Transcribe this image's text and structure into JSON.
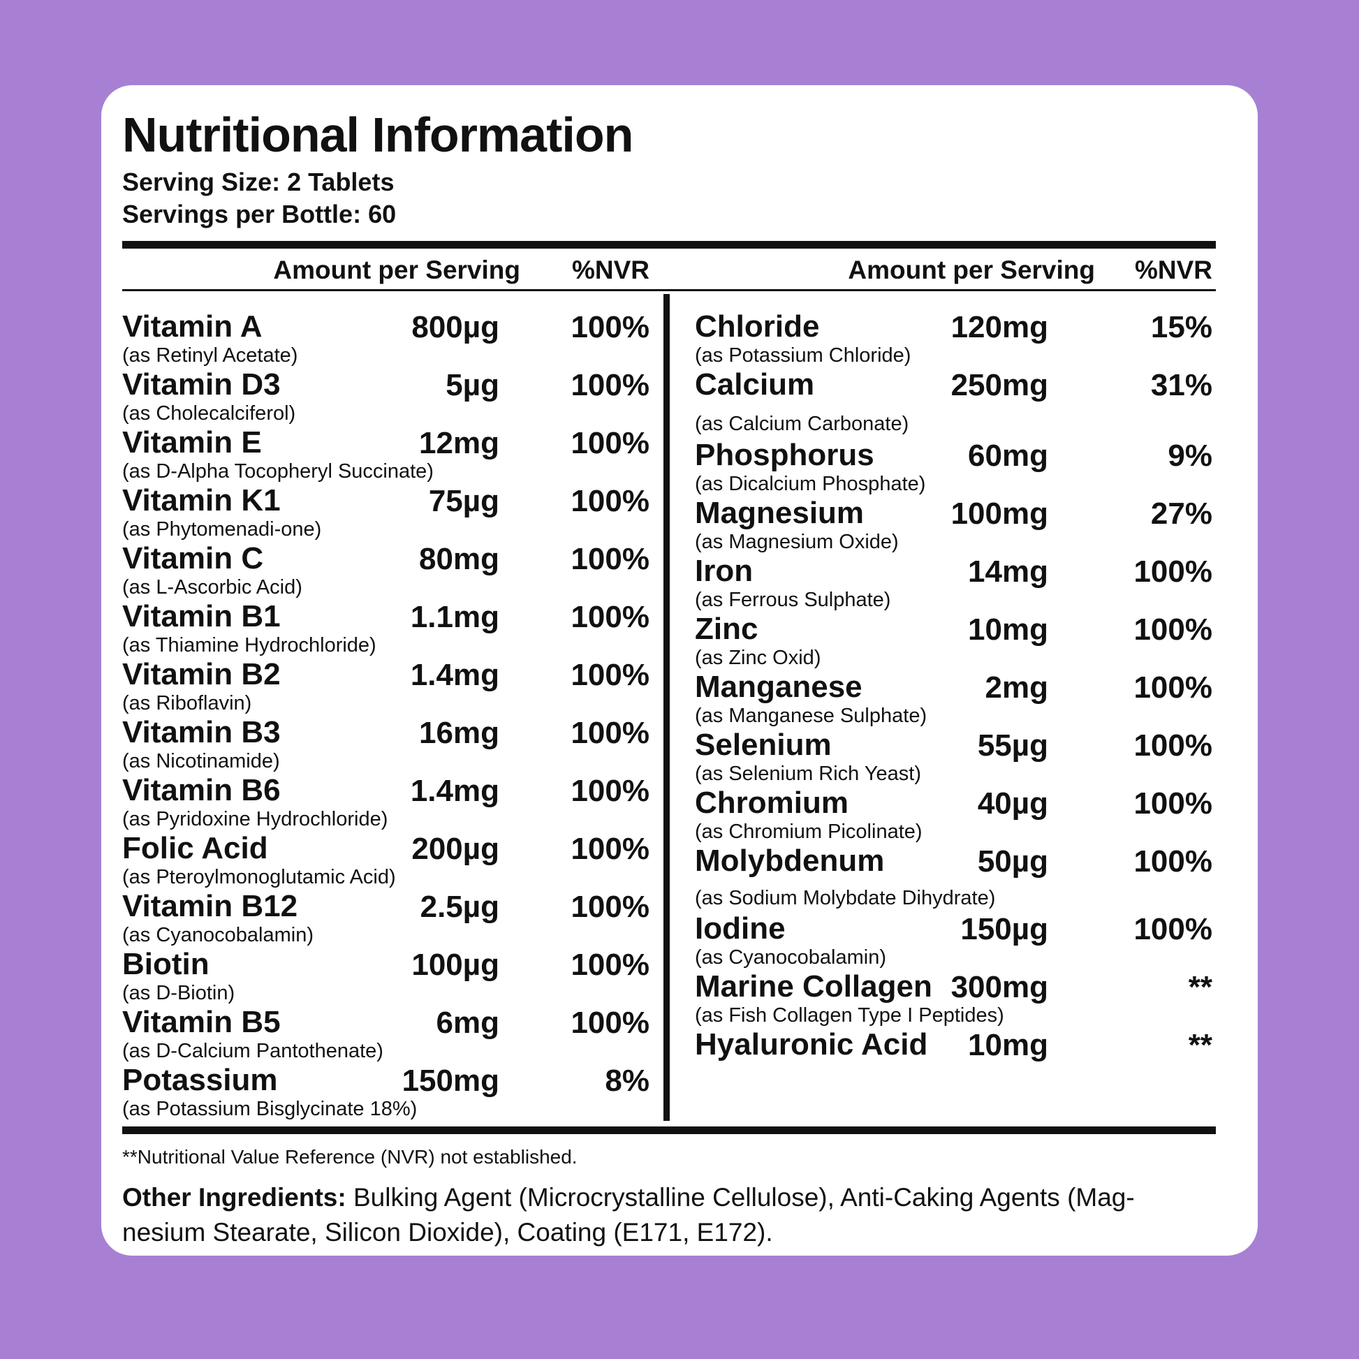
{
  "title": "Nutritional Information",
  "serving_size": "Serving Size: 2 Tablets",
  "servings_per_bottle": "Servings per Bottle: 60",
  "table": {
    "header": {
      "amount": "Amount per Serving",
      "nvr": "%NVR"
    },
    "left_column": [
      {
        "name": "Vitamin A",
        "sub": "(as Retinyl Acetate)",
        "amount": "800µg",
        "nvr": "100%"
      },
      {
        "name": "Vitamin D3",
        "sub": "(as Cholecalciferol)",
        "amount": "5µg",
        "nvr": "100%"
      },
      {
        "name": "Vitamin E",
        "sub": "(as D-Alpha Tocopheryl Succinate)",
        "amount": "12mg",
        "nvr": "100%"
      },
      {
        "name": "Vitamin K1",
        "sub": "(as Phytomenadi-one)",
        "amount": "75µg",
        "nvr": "100%"
      },
      {
        "name": "Vitamin C",
        "sub": "(as L-Ascorbic Acid)",
        "amount": "80mg",
        "nvr": "100%"
      },
      {
        "name": "Vitamin B1",
        "sub": "(as Thiamine Hydrochloride)",
        "amount": "1.1mg",
        "nvr": "100%"
      },
      {
        "name": "Vitamin B2",
        "sub": "(as Riboflavin)",
        "amount": "1.4mg",
        "nvr": "100%"
      },
      {
        "name": "Vitamin B3",
        "sub": "(as Nicotinamide)",
        "amount": "16mg",
        "nvr": "100%"
      },
      {
        "name": "Vitamin B6",
        "sub": "(as Pyridoxine Hydrochloride)",
        "amount": "1.4mg",
        "nvr": "100%"
      },
      {
        "name": "Folic Acid",
        "sub": "(as Pteroylmonoglutamic Acid)",
        "amount": "200µg",
        "nvr": "100%"
      },
      {
        "name": "Vitamin B12",
        "sub": "(as Cyanocobalamin)",
        "amount": "2.5µg",
        "nvr": "100%"
      },
      {
        "name": "Biotin",
        "sub": "(as D-Biotin)",
        "amount": "100µg",
        "nvr": "100%"
      },
      {
        "name": "Vitamin B5",
        "sub": "(as D-Calcium Pantothenate)",
        "amount": "6mg",
        "nvr": "100%"
      },
      {
        "name": "Potassium",
        "sub": "(as Potassium Bisglycinate 18%)",
        "amount": "150mg",
        "nvr": "8%"
      }
    ],
    "right_column": [
      {
        "name": "Chloride",
        "sub": "(as Potassium Chloride)",
        "amount": "120mg",
        "nvr": "15%"
      },
      {
        "name": "Calcium",
        "sub": "(as Calcium Carbonate)",
        "amount": "250mg",
        "nvr": "31%",
        "spaced": "calcium"
      },
      {
        "name": "Phosphorus",
        "sub": "(as Dicalcium Phosphate)",
        "amount": "60mg",
        "nvr": "9%"
      },
      {
        "name": "Magnesium",
        "sub": "(as Magnesium Oxide)",
        "amount": "100mg",
        "nvr": "27%"
      },
      {
        "name": "Iron",
        "sub": "(as Ferrous Sulphate)",
        "amount": "14mg",
        "nvr": "100%"
      },
      {
        "name": "Zinc",
        "sub": "(as Zinc Oxid)",
        "amount": "10mg",
        "nvr": "100%"
      },
      {
        "name": "Manganese",
        "sub": "(as Manganese Sulphate)",
        "amount": "2mg",
        "nvr": "100%"
      },
      {
        "name": "Selenium",
        "sub": "(as Selenium Rich Yeast)",
        "amount": "55µg",
        "nvr": "100%"
      },
      {
        "name": "Chromium",
        "sub": "(as Chromium Picolinate)",
        "amount": "40µg",
        "nvr": "100%"
      },
      {
        "name": "Molybdenum",
        "sub": "(as Sodium Molybdate Dihydrate)",
        "amount": "50µg",
        "nvr": "100%",
        "spaced": "moly"
      },
      {
        "name": "Iodine",
        "sub": "(as Cyanocobalamin)",
        "amount": "150µg",
        "nvr": "100%"
      },
      {
        "name": "Marine Collagen",
        "sub": "(as Fish Collagen Type I Peptides)",
        "amount": "300mg",
        "nvr": "**"
      },
      {
        "name": "Hyaluronic Acid",
        "sub": "",
        "amount": "10mg",
        "nvr": "**"
      }
    ]
  },
  "footnote": "**Nutritional Value Reference (NVR) not established.",
  "other_ingredients": {
    "label": "Other Ingredients:",
    "line1": " Bulking Agent (Microcrystalline Cellulose),  Anti-Caking Agents (Mag-",
    "line2": "nesium Stearate, Silicon Dioxide), Coating (E171, E172)."
  },
  "colors": {
    "background": "#a780d4",
    "card": "#ffffff",
    "text": "#111111"
  }
}
